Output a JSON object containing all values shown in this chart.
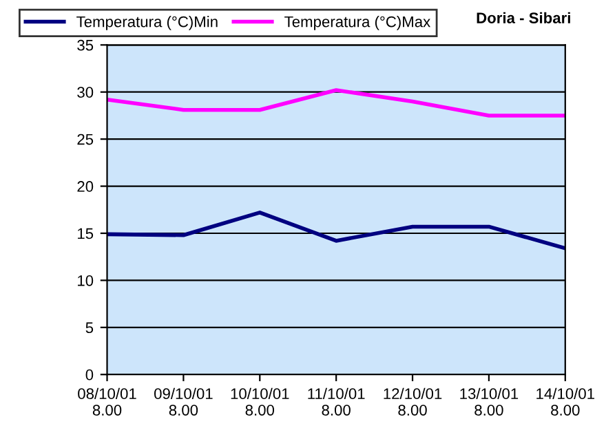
{
  "chart_data": {
    "type": "line",
    "title": "Doria - Sibari",
    "categories": [
      "08/10/01\n8.00",
      "09/10/01\n8.00",
      "10/10/01\n8.00",
      "11/10/01\n8.00",
      "12/10/01\n8.00",
      "13/10/01\n8.00",
      "14/10/01\n8.00"
    ],
    "series": [
      {
        "name": "Temperatura (°C)Min",
        "color": "#000080",
        "values": [
          14.9,
          14.8,
          17.2,
          14.2,
          15.7,
          15.7,
          13.4
        ]
      },
      {
        "name": "Temperatura (°C)Max",
        "color": "#ff00ff",
        "values": [
          29.2,
          28.1,
          28.1,
          30.2,
          29.0,
          27.5,
          27.5
        ]
      }
    ],
    "ylim": [
      0,
      35
    ],
    "yticks": [
      0,
      5,
      10,
      15,
      20,
      25,
      30,
      35
    ],
    "grid": "y",
    "legend": "top",
    "marker": "none",
    "line_style": "solid"
  }
}
